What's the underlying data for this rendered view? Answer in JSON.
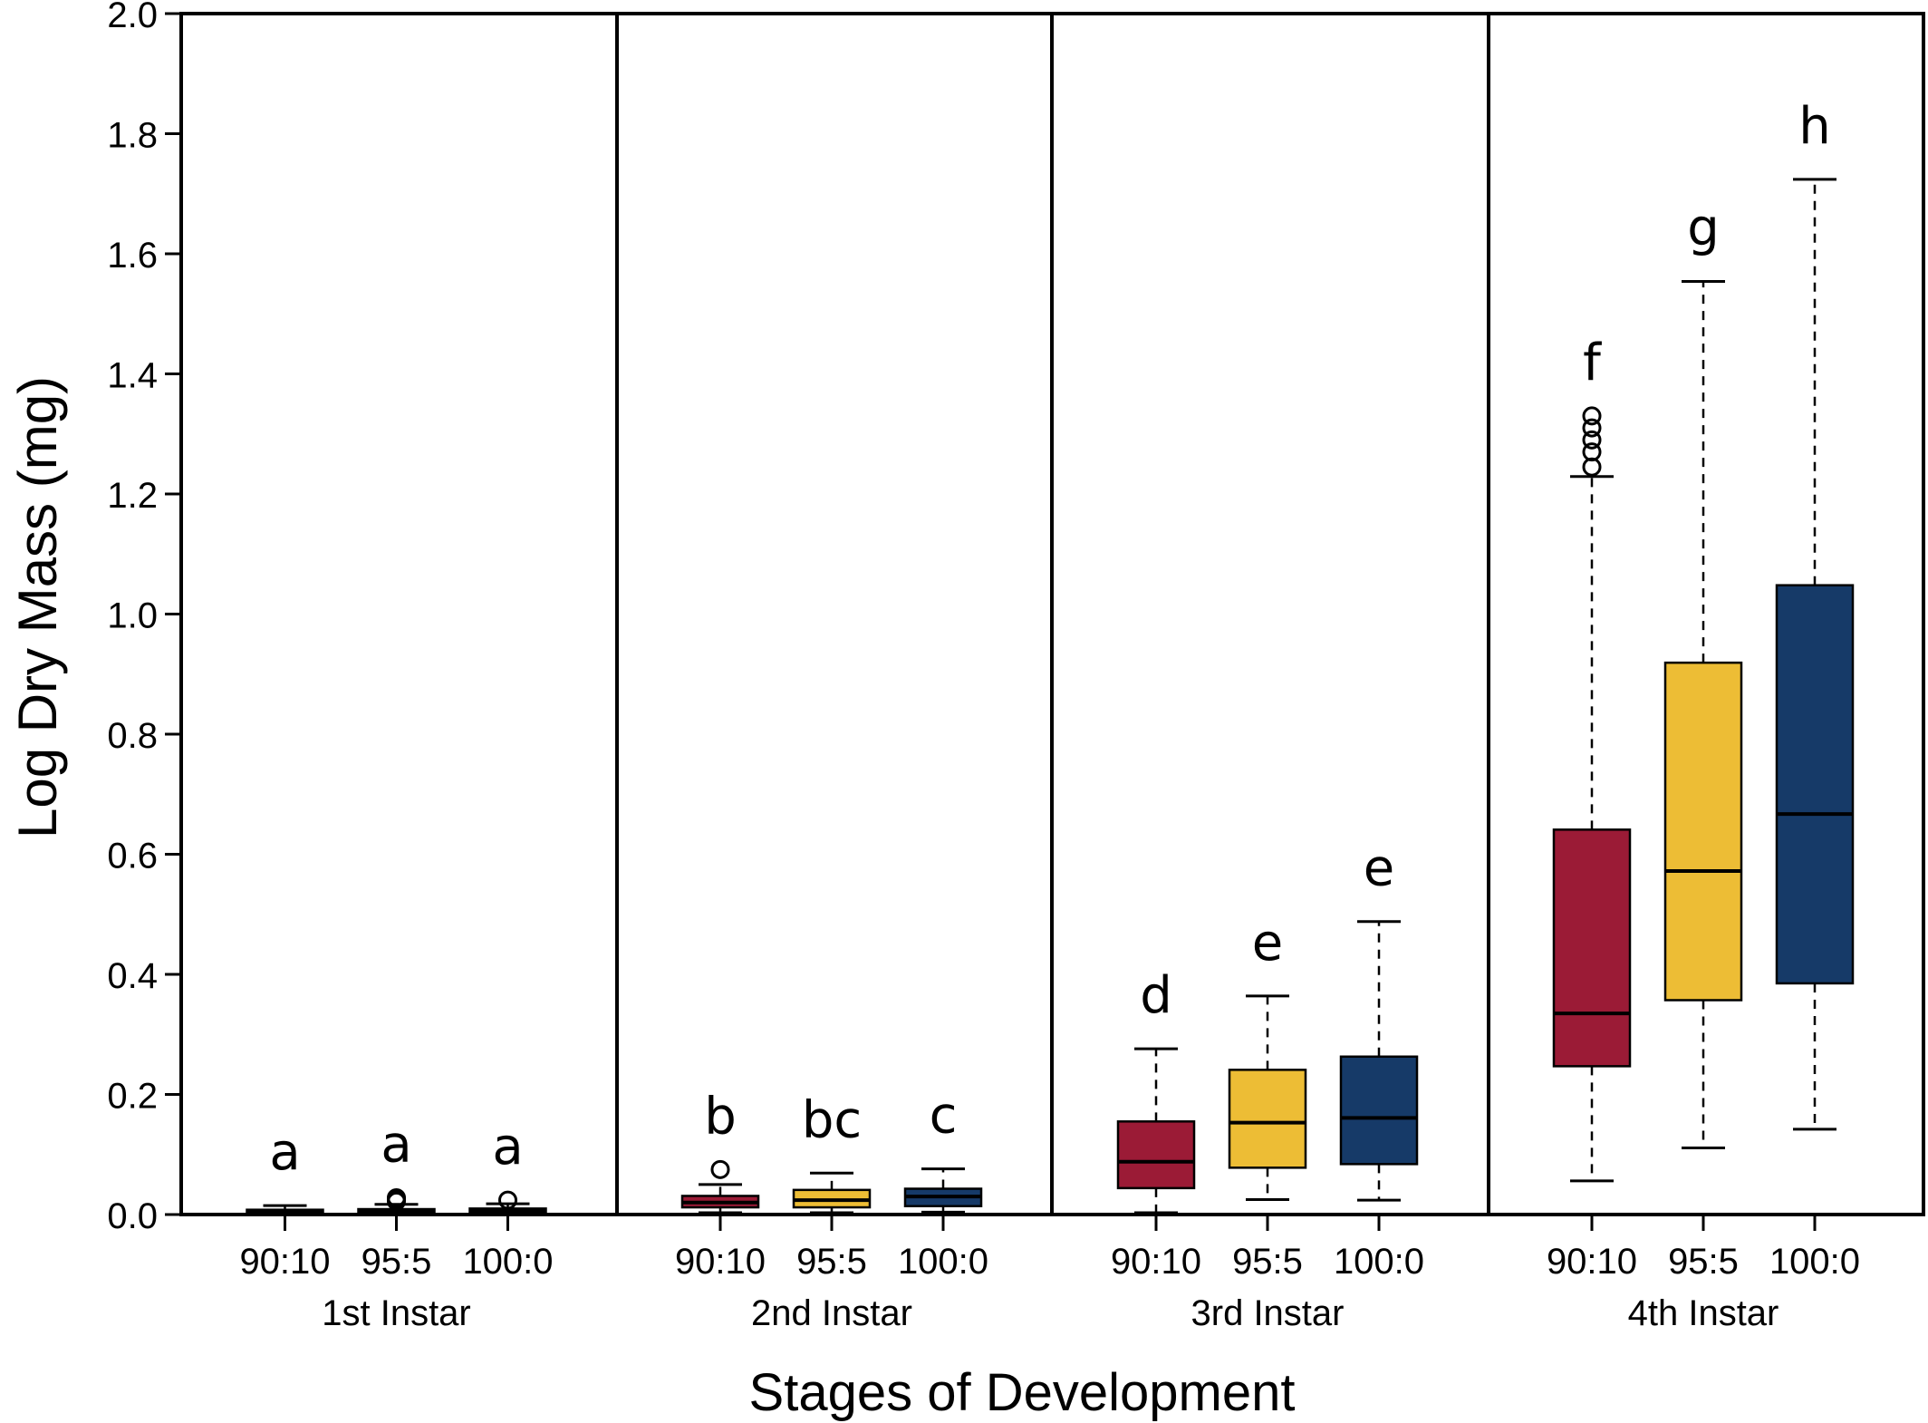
{
  "chart_data": {
    "type": "box",
    "title": "",
    "xlabel": "Stages of Development",
    "ylabel": "Log Dry Mass (mg)",
    "ylim": [
      0,
      2.0
    ],
    "yticks": [
      "0.0",
      "0.2",
      "0.4",
      "0.6",
      "0.8",
      "1.0",
      "1.2",
      "1.4",
      "1.6",
      "1.8",
      "2.0"
    ],
    "treatments": [
      "90:10",
      "95:5",
      "100:0"
    ],
    "colors": {
      "90:10": "#9b1b36",
      "95:5": "#edbd35",
      "100:0": "#163a68"
    },
    "groups": [
      {
        "label": "1st Instar",
        "boxes": [
          {
            "treatment": "90:10",
            "min": 0.0,
            "q1": 0.002,
            "median": 0.005,
            "q3": 0.008,
            "max": 0.015,
            "outliers": [],
            "letter": "a"
          },
          {
            "treatment": "95:5",
            "min": 0.0,
            "q1": 0.003,
            "median": 0.006,
            "q3": 0.009,
            "max": 0.017,
            "outliers": [
              0.022,
              0.026,
              0.028
            ],
            "letter": "a"
          },
          {
            "treatment": "100:0",
            "min": 0.0,
            "q1": 0.003,
            "median": 0.007,
            "q3": 0.01,
            "max": 0.018,
            "outliers": [
              0.024
            ],
            "letter": "a"
          }
        ]
      },
      {
        "label": "2nd Instar",
        "boxes": [
          {
            "treatment": "90:10",
            "min": 0.003,
            "q1": 0.012,
            "median": 0.02,
            "q3": 0.031,
            "max": 0.05,
            "outliers": [
              0.075
            ],
            "letter": "b"
          },
          {
            "treatment": "95:5",
            "min": 0.003,
            "q1": 0.012,
            "median": 0.024,
            "q3": 0.041,
            "max": 0.069,
            "outliers": [],
            "letter": "bc"
          },
          {
            "treatment": "100:0",
            "min": 0.004,
            "q1": 0.014,
            "median": 0.03,
            "q3": 0.043,
            "max": 0.076,
            "outliers": [],
            "letter": "c"
          }
        ]
      },
      {
        "label": "3rd Instar",
        "boxes": [
          {
            "treatment": "90:10",
            "min": 0.003,
            "q1": 0.044,
            "median": 0.088,
            "q3": 0.155,
            "max": 0.276,
            "outliers": [],
            "letter": "d"
          },
          {
            "treatment": "95:5",
            "min": 0.025,
            "q1": 0.078,
            "median": 0.153,
            "q3": 0.241,
            "max": 0.364,
            "outliers": [],
            "letter": "e"
          },
          {
            "treatment": "100:0",
            "min": 0.024,
            "q1": 0.084,
            "median": 0.161,
            "q3": 0.263,
            "max": 0.488,
            "outliers": [],
            "letter": "e"
          }
        ]
      },
      {
        "label": "4th Instar",
        "boxes": [
          {
            "treatment": "90:10",
            "min": 0.056,
            "q1": 0.247,
            "median": 0.335,
            "q3": 0.641,
            "max": 1.229,
            "outliers": [
              1.245,
              1.27,
              1.29,
              1.31,
              1.33
            ],
            "letter": "f"
          },
          {
            "treatment": "95:5",
            "min": 0.111,
            "q1": 0.357,
            "median": 0.572,
            "q3": 0.919,
            "max": 1.554,
            "outliers": [],
            "letter": "g"
          },
          {
            "treatment": "100:0",
            "min": 0.142,
            "q1": 0.385,
            "median": 0.667,
            "q3": 1.048,
            "max": 1.724,
            "outliers": [],
            "letter": "h"
          }
        ]
      }
    ]
  }
}
